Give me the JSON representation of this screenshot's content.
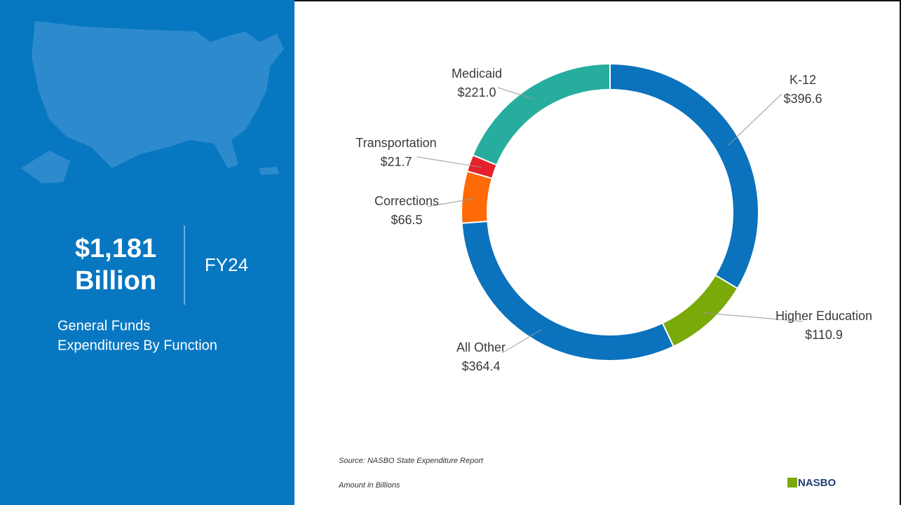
{
  "chart_data": {
    "type": "donut",
    "categories": [
      "K-12",
      "Higher Education",
      "All Other",
      "Corrections",
      "Transportation",
      "Medicaid"
    ],
    "values": [
      396.6,
      110.9,
      364.4,
      66.5,
      21.7,
      221
    ],
    "value_labels": [
      "$396.6",
      "$110.9",
      "$364.4",
      "$66.5",
      "$21.7",
      "$221.0"
    ],
    "colors": [
      "#0b72bd",
      "#7aa90a",
      "#0b72bd",
      "#fd6a06",
      "#e5212b",
      "#27ad9d"
    ]
  },
  "panel": {
    "total": "$1,181",
    "unit": "Billion",
    "year": "FY24",
    "subtitle_lines": [
      "General Funds",
      "Expenditures By Function"
    ]
  },
  "footer": {
    "source": "Source: NASBO State Expenditure Report",
    "note": "Amount in Billions",
    "logo": "NASBO"
  }
}
